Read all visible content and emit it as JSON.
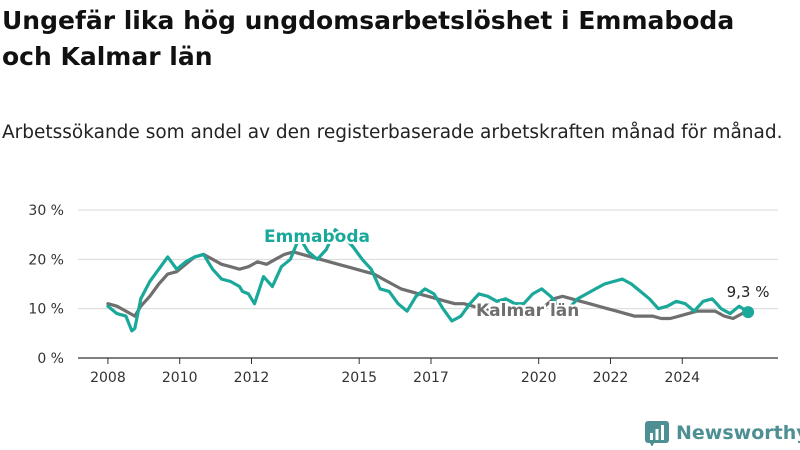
{
  "title": "Ungefär lika hög ungdomsarbetslöshet i Emmaboda och Kalmar län",
  "subtitle": "Arbetssökande som andel av den registerbaserade arbetskraften månad för månad.",
  "brand": {
    "name": "Newsworthy"
  },
  "colors": {
    "emmaboda": "#1aa89a",
    "kalmar": "#6f6f6f",
    "grid": "#d8d8d8",
    "axis": "#333333"
  },
  "chart_data": {
    "type": "line",
    "x_ticks": [
      "2008",
      "2010",
      "2012",
      "2015",
      "2017",
      "2020",
      "2022",
      "2024"
    ],
    "y_ticks": [
      "0 %",
      "10 %",
      "20 %",
      "30 %"
    ],
    "ylim": [
      0,
      30
    ],
    "xlim": [
      "2007-03",
      "2026-09"
    ],
    "grid": true,
    "end_label": "9,3 %",
    "series": [
      {
        "name": "Emmaboda",
        "color": "#1aa89a",
        "points": [
          [
            "2008-01",
            10.5
          ],
          [
            "2008-04",
            9.0
          ],
          [
            "2008-07",
            8.5
          ],
          [
            "2008-09",
            5.5
          ],
          [
            "2008-10",
            6.0
          ],
          [
            "2008-12",
            12.0
          ],
          [
            "2009-03",
            15.5
          ],
          [
            "2009-06",
            18.0
          ],
          [
            "2009-09",
            20.5
          ],
          [
            "2009-12",
            18.0
          ],
          [
            "2010-03",
            19.5
          ],
          [
            "2010-06",
            20.5
          ],
          [
            "2010-09",
            21.0
          ],
          [
            "2010-12",
            18.0
          ],
          [
            "2011-03",
            16.0
          ],
          [
            "2011-06",
            15.5
          ],
          [
            "2011-09",
            14.5
          ],
          [
            "2011-10",
            13.5
          ],
          [
            "2011-12",
            13.0
          ],
          [
            "2012-02",
            11.0
          ],
          [
            "2012-05",
            16.5
          ],
          [
            "2012-08",
            14.5
          ],
          [
            "2012-11",
            18.5
          ],
          [
            "2013-02",
            20.0
          ],
          [
            "2013-05",
            24.5
          ],
          [
            "2013-08",
            21.5
          ],
          [
            "2013-11",
            20.0
          ],
          [
            "2014-02",
            22.0
          ],
          [
            "2014-05",
            26.0
          ],
          [
            "2014-08",
            24.5
          ],
          [
            "2014-11",
            22.5
          ],
          [
            "2015-02",
            20.0
          ],
          [
            "2015-05",
            18.0
          ],
          [
            "2015-08",
            14.0
          ],
          [
            "2015-11",
            13.5
          ],
          [
            "2016-02",
            11.0
          ],
          [
            "2016-05",
            9.5
          ],
          [
            "2016-08",
            12.5
          ],
          [
            "2016-11",
            14.0
          ],
          [
            "2017-02",
            13.0
          ],
          [
            "2017-05",
            10.0
          ],
          [
            "2017-08",
            7.5
          ],
          [
            "2017-11",
            8.5
          ],
          [
            "2018-02",
            11.0
          ],
          [
            "2018-05",
            13.0
          ],
          [
            "2018-08",
            12.5
          ],
          [
            "2018-11",
            11.5
          ],
          [
            "2019-02",
            12.0
          ],
          [
            "2019-05",
            11.0
          ],
          [
            "2019-08",
            11.0
          ],
          [
            "2019-11",
            13.0
          ],
          [
            "2020-02",
            14.0
          ],
          [
            "2020-05",
            12.5
          ],
          [
            "2020-08",
            10.5
          ],
          [
            "2020-11",
            10.0
          ],
          [
            "2021-02",
            12.0
          ],
          [
            "2021-05",
            13.0
          ],
          [
            "2021-08",
            14.0
          ],
          [
            "2021-11",
            15.0
          ],
          [
            "2022-02",
            15.5
          ],
          [
            "2022-05",
            16.0
          ],
          [
            "2022-08",
            15.0
          ],
          [
            "2022-11",
            13.5
          ],
          [
            "2023-02",
            12.0
          ],
          [
            "2023-05",
            10.0
          ],
          [
            "2023-08",
            10.5
          ],
          [
            "2023-11",
            11.5
          ],
          [
            "2024-02",
            11.0
          ],
          [
            "2024-05",
            9.5
          ],
          [
            "2024-08",
            11.5
          ],
          [
            "2024-11",
            12.0
          ],
          [
            "2025-02",
            10.0
          ],
          [
            "2025-05",
            9.0
          ],
          [
            "2025-08",
            10.5
          ],
          [
            "2025-11",
            9.3
          ]
        ]
      },
      {
        "name": "Kalmar län",
        "color": "#6f6f6f",
        "points": [
          [
            "2008-01",
            11.0
          ],
          [
            "2008-04",
            10.5
          ],
          [
            "2008-07",
            9.5
          ],
          [
            "2008-10",
            8.5
          ],
          [
            "2008-12",
            10.5
          ],
          [
            "2009-03",
            12.5
          ],
          [
            "2009-06",
            15.0
          ],
          [
            "2009-09",
            17.0
          ],
          [
            "2009-12",
            17.5
          ],
          [
            "2010-03",
            19.0
          ],
          [
            "2010-06",
            20.5
          ],
          [
            "2010-09",
            21.0
          ],
          [
            "2010-12",
            20.0
          ],
          [
            "2011-03",
            19.0
          ],
          [
            "2011-06",
            18.5
          ],
          [
            "2011-09",
            18.0
          ],
          [
            "2011-12",
            18.5
          ],
          [
            "2012-03",
            19.5
          ],
          [
            "2012-06",
            19.0
          ],
          [
            "2012-09",
            20.0
          ],
          [
            "2012-12",
            21.0
          ],
          [
            "2013-03",
            21.5
          ],
          [
            "2013-06",
            21.0
          ],
          [
            "2013-09",
            20.5
          ],
          [
            "2013-12",
            20.0
          ],
          [
            "2014-03",
            19.5
          ],
          [
            "2014-06",
            19.0
          ],
          [
            "2014-09",
            18.5
          ],
          [
            "2014-12",
            18.0
          ],
          [
            "2015-03",
            17.5
          ],
          [
            "2015-06",
            17.0
          ],
          [
            "2015-09",
            16.0
          ],
          [
            "2015-12",
            15.0
          ],
          [
            "2016-03",
            14.0
          ],
          [
            "2016-06",
            13.5
          ],
          [
            "2016-09",
            13.0
          ],
          [
            "2016-12",
            12.5
          ],
          [
            "2017-03",
            12.0
          ],
          [
            "2017-06",
            11.5
          ],
          [
            "2017-09",
            11.0
          ],
          [
            "2017-12",
            11.0
          ],
          [
            "2018-03",
            10.5
          ],
          [
            "2018-06",
            10.0
          ],
          [
            "2018-09",
            9.5
          ],
          [
            "2018-12",
            9.5
          ],
          [
            "2019-03",
            9.0
          ],
          [
            "2019-06",
            9.0
          ],
          [
            "2019-09",
            8.5
          ],
          [
            "2019-12",
            9.0
          ],
          [
            "2020-03",
            10.5
          ],
          [
            "2020-06",
            12.0
          ],
          [
            "2020-09",
            12.5
          ],
          [
            "2020-12",
            12.0
          ],
          [
            "2021-03",
            11.5
          ],
          [
            "2021-06",
            11.0
          ],
          [
            "2021-09",
            10.5
          ],
          [
            "2021-12",
            10.0
          ],
          [
            "2022-03",
            9.5
          ],
          [
            "2022-06",
            9.0
          ],
          [
            "2022-09",
            8.5
          ],
          [
            "2022-12",
            8.5
          ],
          [
            "2023-03",
            8.5
          ],
          [
            "2023-06",
            8.0
          ],
          [
            "2023-09",
            8.0
          ],
          [
            "2023-12",
            8.5
          ],
          [
            "2024-03",
            9.0
          ],
          [
            "2024-06",
            9.5
          ],
          [
            "2024-09",
            9.5
          ],
          [
            "2024-12",
            9.5
          ],
          [
            "2025-03",
            8.5
          ],
          [
            "2025-06",
            8.0
          ],
          [
            "2025-09",
            9.0
          ],
          [
            "2025-11",
            9.3
          ]
        ]
      }
    ]
  }
}
